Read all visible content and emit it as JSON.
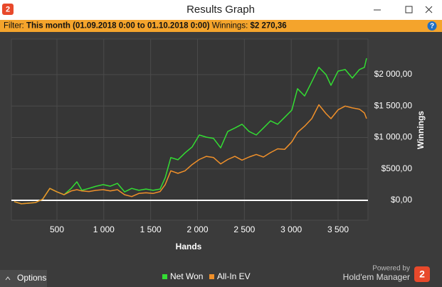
{
  "window": {
    "title": "Results Graph",
    "icon": "2"
  },
  "filter": {
    "label": "Filter:",
    "period": "This month (01.09.2018 0:00 to 01.10.2018 0:00)",
    "winnings_label": "Winnings:",
    "winnings": "$2 270,36",
    "help": "?"
  },
  "chart_data": {
    "type": "line",
    "x_label": "Hands",
    "y_label": "Winnings",
    "xlim": [
      14,
      3819
    ],
    "ylim": [
      -316,
      2565
    ],
    "y_axis_side": "right",
    "grid": true,
    "xticks": [
      500,
      {
        "value": 1000,
        "label": "1 000"
      },
      {
        "value": 1500,
        "label": "1 500"
      },
      {
        "value": 2000,
        "label": "2 000"
      },
      {
        "value": 2500,
        "label": "2 500"
      },
      {
        "value": 3000,
        "label": "3 000"
      },
      {
        "value": 3500,
        "label": "3 500"
      }
    ],
    "yticks": [
      {
        "value": 0,
        "label": "$0,00"
      },
      {
        "value": 500,
        "label": "$500,00"
      },
      {
        "value": 1000,
        "label": "$1 000,00"
      },
      {
        "value": 1500,
        "label": "$1 500,00"
      },
      {
        "value": 2000,
        "label": "$2 000,00"
      }
    ],
    "x": [
      44,
      120,
      272,
      348,
      424,
      500,
      576,
      652,
      713,
      766,
      842,
      918,
      994,
      1070,
      1146,
      1222,
      1298,
      1374,
      1450,
      1525,
      1601,
      1655,
      1715,
      1791,
      1867,
      1943,
      2019,
      2095,
      2171,
      2247,
      2323,
      2399,
      2475,
      2551,
      2627,
      2703,
      2779,
      2855,
      2930,
      3006,
      3067,
      3143,
      3219,
      3295,
      3371,
      3424,
      3500,
      3576,
      3652,
      3728,
      3781,
      3804
    ],
    "series": [
      {
        "name": "Net Won",
        "color": "#33dd33",
        "values": [
          -20,
          -55,
          -35,
          20,
          190,
          135,
          90,
          190,
          295,
          160,
          190,
          225,
          250,
          225,
          270,
          135,
          190,
          160,
          180,
          160,
          180,
          360,
          680,
          645,
          755,
          850,
          1040,
          1005,
          985,
          835,
          1095,
          1150,
          1210,
          1095,
          1040,
          1150,
          1265,
          1210,
          1320,
          1435,
          1775,
          1660,
          1885,
          2115,
          2000,
          1830,
          2055,
          2080,
          1945,
          2080,
          2115,
          2260
        ]
      },
      {
        "name": "All-In EV",
        "color": "#f0902a",
        "values": [
          -20,
          -55,
          -35,
          20,
          190,
          135,
          90,
          150,
          170,
          150,
          140,
          160,
          170,
          150,
          170,
          90,
          60,
          110,
          120,
          110,
          140,
          250,
          470,
          430,
          470,
          570,
          650,
          700,
          680,
          580,
          650,
          700,
          640,
          690,
          730,
          690,
          760,
          820,
          810,
          930,
          1080,
          1180,
          1300,
          1520,
          1380,
          1300,
          1440,
          1500,
          1470,
          1450,
          1390,
          1300
        ]
      }
    ]
  },
  "footer": {
    "options": "Options",
    "powered_by": "Powered by",
    "brand": "Hold'em Manager",
    "brand_icon": "2"
  }
}
